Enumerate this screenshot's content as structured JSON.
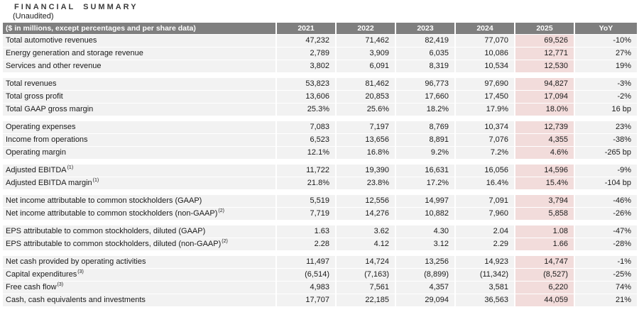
{
  "title": "FINANCIAL SUMMARY",
  "subtitle": "(Unaudited)",
  "colors": {
    "header_bg": "#7f7f7f",
    "header_text": "#ffffff",
    "row_bg": "#f2f2f2",
    "highlight_bg": "#f2dcdb",
    "text": "#1a1a1a"
  },
  "table": {
    "header": {
      "label": "($ in millions, except percentages and per share data)",
      "years": [
        "2021",
        "2022",
        "2023",
        "2024",
        "2025"
      ],
      "yoy": "YoY"
    },
    "rows": [
      {
        "label": "Total automotive revenues",
        "values": [
          "47,232",
          "71,462",
          "82,419",
          "77,070",
          "69,526"
        ],
        "yoy": "-10%"
      },
      {
        "label": "Energy generation and storage revenue",
        "values": [
          "2,789",
          "3,909",
          "6,035",
          "10,086",
          "12,771"
        ],
        "yoy": "27%"
      },
      {
        "label": "Services and other revenue",
        "values": [
          "3,802",
          "6,091",
          "8,319",
          "10,534",
          "12,530"
        ],
        "yoy": "19%"
      },
      {
        "spacer": true
      },
      {
        "label": "Total revenues",
        "values": [
          "53,823",
          "81,462",
          "96,773",
          "97,690",
          "94,827"
        ],
        "yoy": "-3%"
      },
      {
        "label": "Total gross profit",
        "values": [
          "13,606",
          "20,853",
          "17,660",
          "17,450",
          "17,094"
        ],
        "yoy": "-2%"
      },
      {
        "label": "Total GAAP gross margin",
        "values": [
          "25.3%",
          "25.6%",
          "18.2%",
          "17.9%",
          "18.0%"
        ],
        "yoy": "16 bp"
      },
      {
        "spacer": true
      },
      {
        "label": "Operating expenses",
        "values": [
          "7,083",
          "7,197",
          "8,769",
          "10,374",
          "12,739"
        ],
        "yoy": "23%"
      },
      {
        "label": "Income from operations",
        "values": [
          "6,523",
          "13,656",
          "8,891",
          "7,076",
          "4,355"
        ],
        "yoy": "-38%"
      },
      {
        "label": "Operating margin",
        "values": [
          "12.1%",
          "16.8%",
          "9.2%",
          "7.2%",
          "4.6%"
        ],
        "yoy": "-265 bp"
      },
      {
        "spacer": true
      },
      {
        "label": "Adjusted EBITDA",
        "sup": "(1)",
        "values": [
          "11,722",
          "19,390",
          "16,631",
          "16,056",
          "14,596"
        ],
        "yoy": "-9%"
      },
      {
        "label": "Adjusted EBITDA margin",
        "sup": "(1)",
        "values": [
          "21.8%",
          "23.8%",
          "17.2%",
          "16.4%",
          "15.4%"
        ],
        "yoy": "-104 bp"
      },
      {
        "spacer": true
      },
      {
        "label": "Net income attributable to common stockholders (GAAP)",
        "values": [
          "5,519",
          "12,556",
          "14,997",
          "7,091",
          "3,794"
        ],
        "yoy": "-46%"
      },
      {
        "label": "Net income attributable to common stockholders (non-GAAP)",
        "sup": "(2)",
        "values": [
          "7,719",
          "14,276",
          "10,882",
          "7,960",
          "5,858"
        ],
        "yoy": "-26%"
      },
      {
        "spacer": true
      },
      {
        "label": "EPS attributable to common stockholders, diluted (GAAP)",
        "values": [
          "1.63",
          "3.62",
          "4.30",
          "2.04",
          "1.08"
        ],
        "yoy": "-47%"
      },
      {
        "label": "EPS attributable to common stockholders, diluted (non-GAAP)",
        "sup": "(2)",
        "values": [
          "2.28",
          "4.12",
          "3.12",
          "2.29",
          "1.66"
        ],
        "yoy": "-28%"
      },
      {
        "spacer": true
      },
      {
        "label": "Net cash provided by operating activities",
        "values": [
          "11,497",
          "14,724",
          "13,256",
          "14,923",
          "14,747"
        ],
        "yoy": "-1%"
      },
      {
        "label": "Capital expenditures",
        "sup": "(3)",
        "values": [
          "(6,514)",
          "(7,163)",
          "(8,899)",
          "(11,342)",
          "(8,527)"
        ],
        "yoy": "-25%"
      },
      {
        "label": "Free cash flow",
        "sup": "(3)",
        "values": [
          "4,983",
          "7,561",
          "4,357",
          "3,581",
          "6,220"
        ],
        "yoy": "74%"
      },
      {
        "label": "Cash, cash equivalents and investments",
        "values": [
          "17,707",
          "22,185",
          "29,094",
          "36,563",
          "44,059"
        ],
        "yoy": "21%"
      }
    ]
  }
}
